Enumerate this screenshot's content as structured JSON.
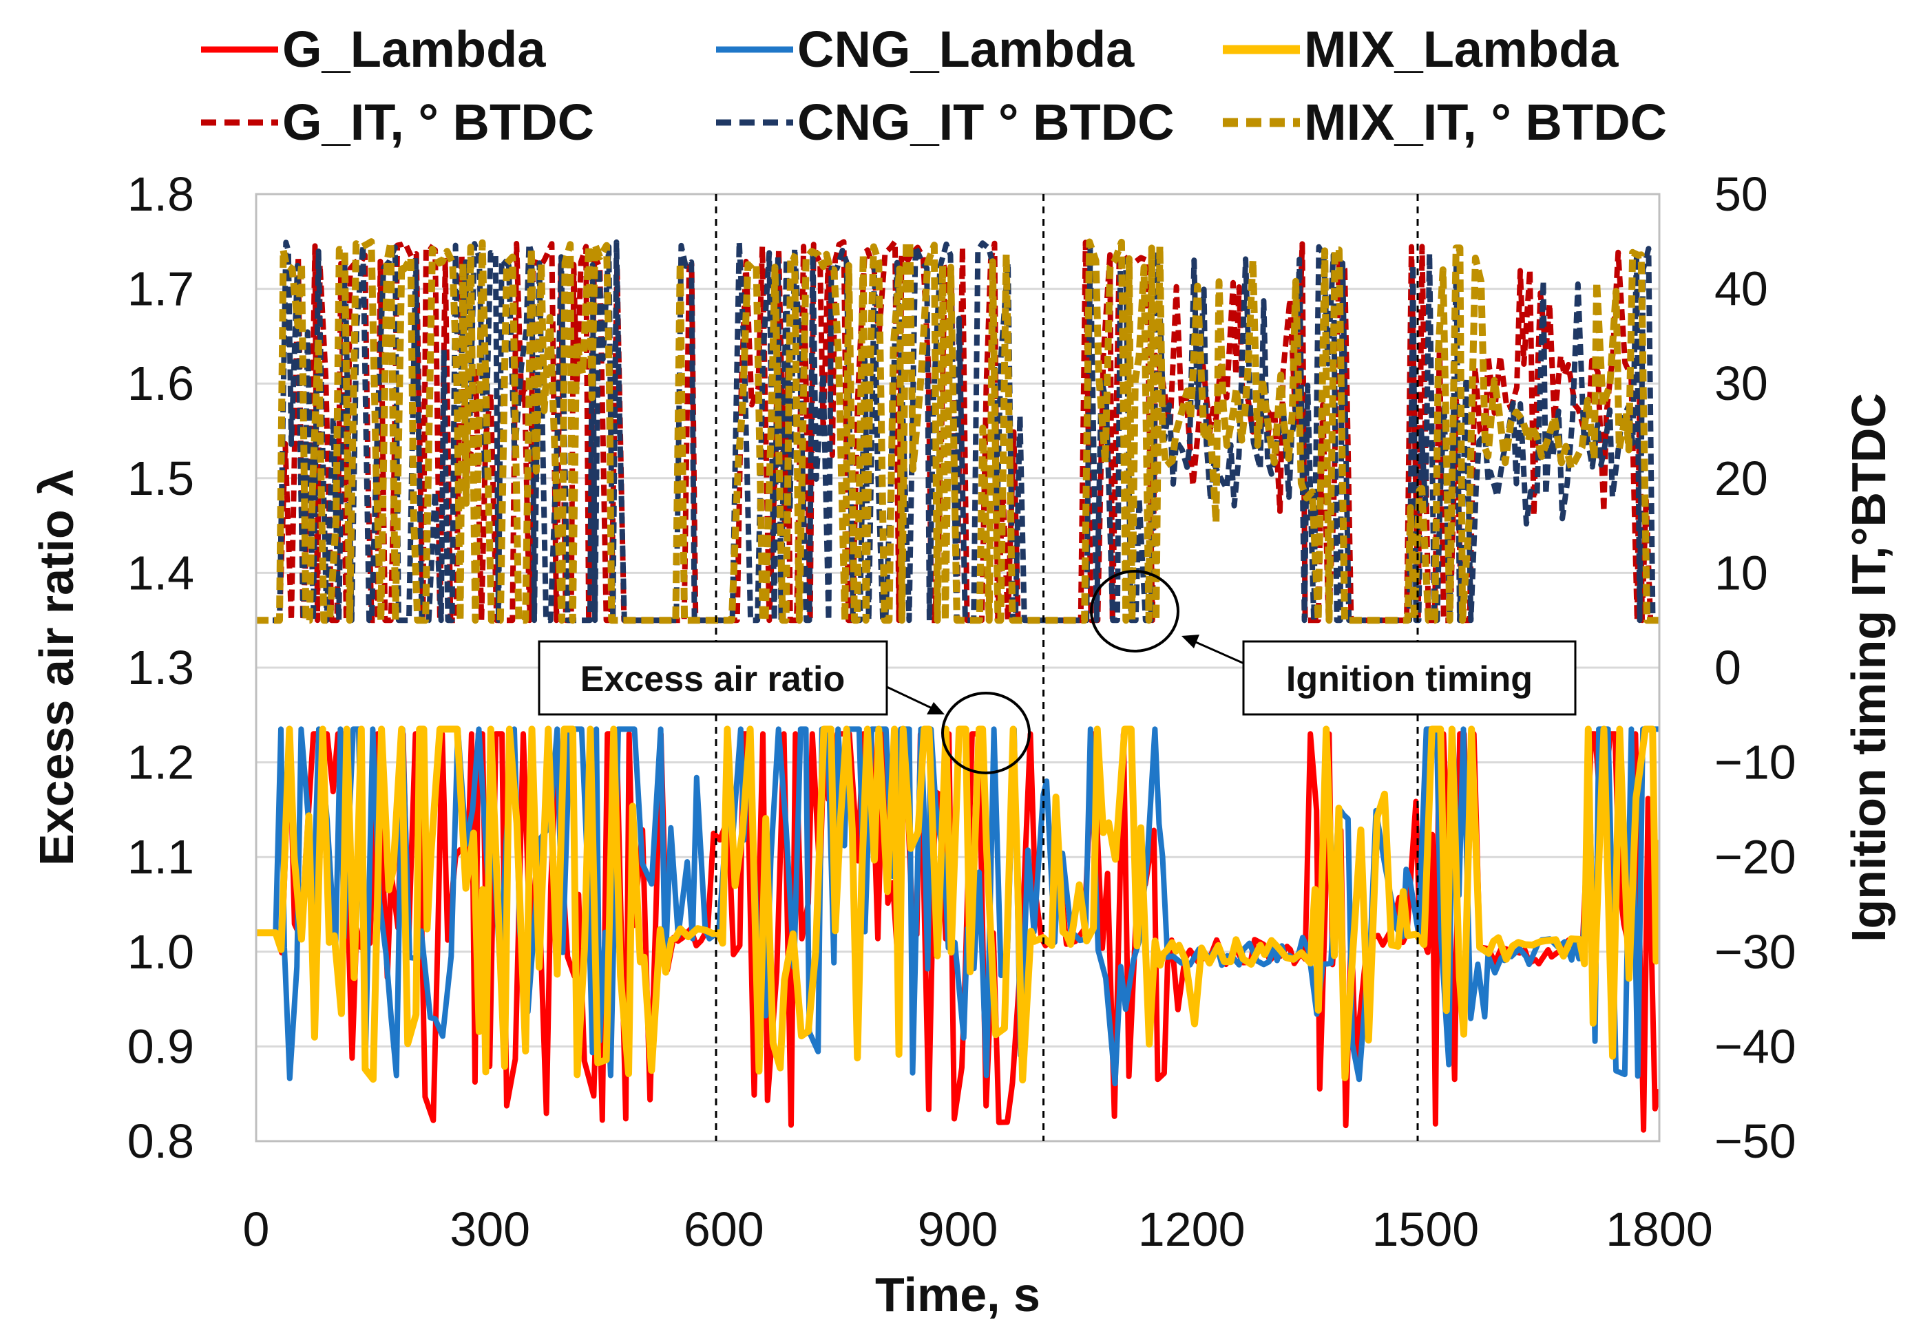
{
  "chart_data": {
    "type": "line",
    "xlabel": "Time, s",
    "ylabel": "Excess air ratio λ",
    "y2label": "Ignition timing IT,°BTDC",
    "xlim": [
      0,
      1800
    ],
    "ylim": [
      0.8,
      1.8
    ],
    "y2lim": [
      -50,
      50
    ],
    "x_ticks": [
      "0",
      "300",
      "600",
      "900",
      "1200",
      "1500",
      "1800"
    ],
    "y_ticks": [
      "0.8",
      "0.9",
      "1.0",
      "1.1",
      "1.2",
      "1.3",
      "1.4",
      "1.5",
      "1.6",
      "1.7",
      "1.8"
    ],
    "y2_ticks": [
      "−50",
      "−40",
      "−30",
      "−20",
      "−10",
      "0",
      "10",
      "20",
      "30",
      "40",
      "50"
    ],
    "grid": "horizontal",
    "legend_position": "top",
    "phase_dividers_x": [
      590,
      1010,
      1490
    ],
    "colors": {
      "g_lambda": "#ff0000",
      "cng_lambda": "#1f77c8",
      "mix_lambda": "#ffc000",
      "g_it": "#c00000",
      "cng_it": "#1f3864",
      "mix_it": "#bf9000"
    },
    "series": [
      {
        "key": "g_lambda",
        "name": "G_Lambda",
        "axis": "left",
        "style": "solid"
      },
      {
        "key": "cng_lambda",
        "name": "CNG_Lambda",
        "axis": "left",
        "style": "solid"
      },
      {
        "key": "mix_lambda",
        "name": "MIX_Lambda",
        "axis": "left",
        "style": "solid"
      },
      {
        "key": "g_it",
        "name": "G_IT, ° BTDC",
        "axis": "right",
        "style": "dashed"
      },
      {
        "key": "cng_it",
        "name": "CNG_IT ° BTDC",
        "axis": "right",
        "style": "dashed"
      },
      {
        "key": "mix_it",
        "name": "MIX_IT, ° BTDC",
        "axis": "right",
        "style": "dashed"
      }
    ],
    "annotations": [
      {
        "text": "Excess air ratio",
        "target_x": 940,
        "target_y": 1.23
      },
      {
        "text": "Ignition timing",
        "target_x": 1130,
        "target_y": 6
      }
    ]
  }
}
